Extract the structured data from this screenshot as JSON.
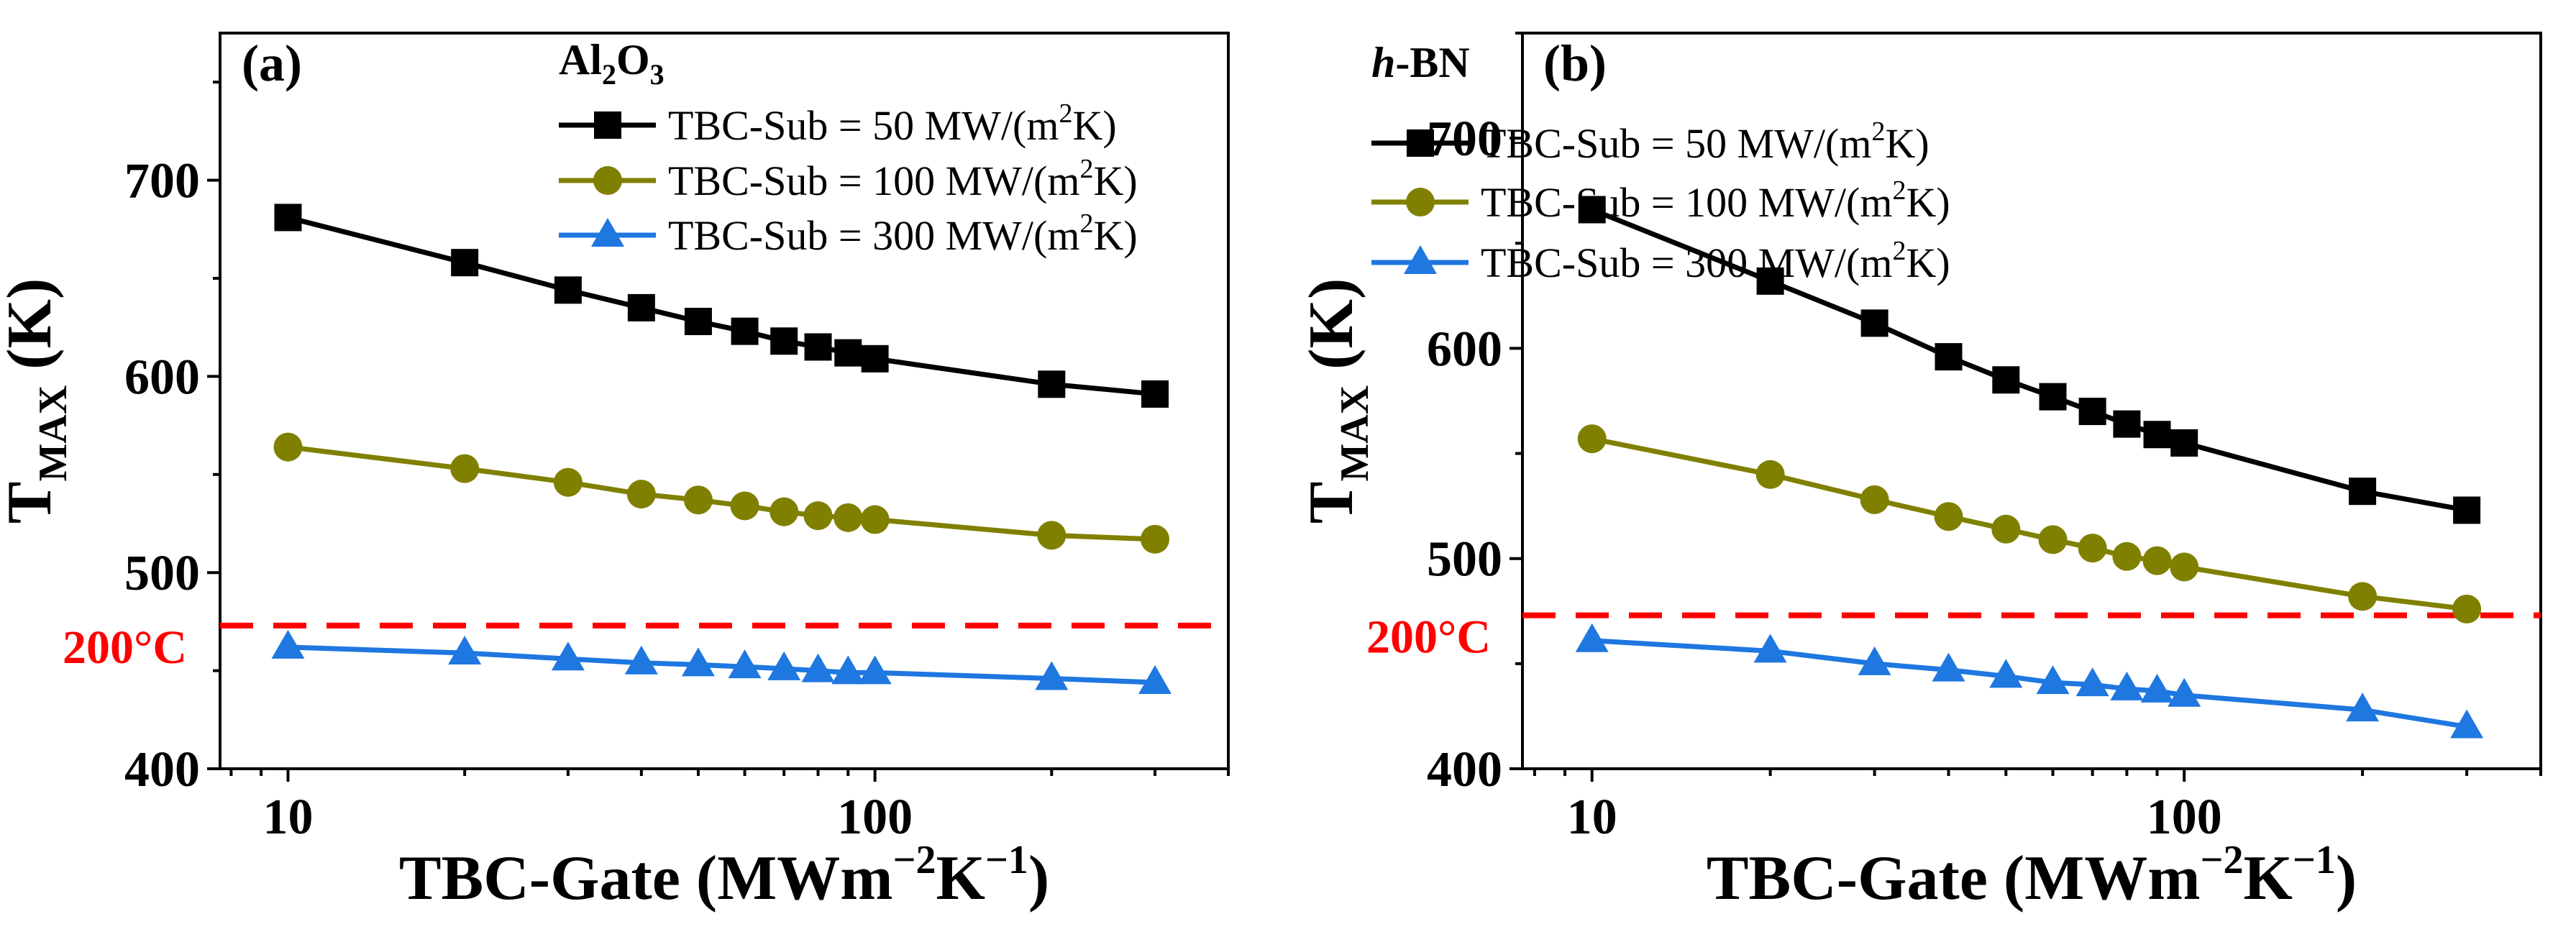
{
  "chart_data": [
    {
      "type": "line",
      "panel_label": "(a)",
      "material": {
        "main": "Al",
        "sub1": "2",
        "mid": "O",
        "sub2": "3"
      },
      "xscale": "log",
      "xlim": [
        7.66,
        400
      ],
      "ylim": [
        400,
        775
      ],
      "xticks": [
        10,
        100
      ],
      "xtick_labels": [
        "10",
        "100"
      ],
      "yticks": [
        400,
        500,
        600,
        700
      ],
      "ytick_labels": [
        "400",
        "500",
        "600",
        "700"
      ],
      "xlabel": {
        "text": "TBC-Gate (MWm",
        "sup1": "−2",
        "mid": "K",
        "sup2": "−1",
        "end": ")"
      },
      "ylabel": {
        "main": "T",
        "sub": "MAX",
        "end": " (K)"
      },
      "reference_line": {
        "value": 473,
        "label": "200°C",
        "color": "#ff0000",
        "style": "dashed"
      },
      "legend_position": "top-right",
      "x": [
        10,
        20,
        30,
        40,
        50,
        60,
        70,
        80,
        90,
        100,
        200,
        300
      ],
      "series": [
        {
          "name": {
            "pre": "TBC-Sub = 50 MW/(m",
            "sup": "2",
            "post": "K)"
          },
          "marker": "square",
          "color": "#000000",
          "values": [
            681,
            658,
            644,
            635,
            628,
            623,
            618,
            615,
            612,
            609,
            596,
            591
          ]
        },
        {
          "name": {
            "pre": "TBC-Sub = 100 MW/(m",
            "sup": "2",
            "post": "K)"
          },
          "marker": "circle",
          "color": "#808000",
          "values": [
            564,
            553,
            546,
            540,
            537,
            534,
            531,
            529,
            528,
            527,
            519,
            517
          ]
        },
        {
          "name": {
            "pre": "TBC-Sub = 300 MW/(m",
            "sup": "2",
            "post": "K)"
          },
          "marker": "triangle",
          "color": "#1f77e0",
          "values": [
            462,
            459,
            456,
            454,
            453,
            452,
            451,
            450,
            449,
            449,
            446,
            444
          ]
        }
      ]
    },
    {
      "type": "line",
      "panel_label": "(b)",
      "material": {
        "italic": "h",
        "rest": "-BN"
      },
      "xscale": "log",
      "xlim": [
        7.63,
        400
      ],
      "ylim": [
        400,
        750
      ],
      "xticks": [
        10,
        100
      ],
      "xtick_labels": [
        "10",
        "100"
      ],
      "yticks": [
        400,
        500,
        600,
        700
      ],
      "ytick_labels": [
        "400",
        "500",
        "600",
        "700"
      ],
      "xlabel": {
        "text": "TBC-Gate (MWm",
        "sup1": "−2",
        "mid": "K",
        "sup2": "−1",
        "end": ")"
      },
      "ylabel": {
        "main": "T",
        "sub": "MAX",
        "end": " (K)"
      },
      "reference_line": {
        "value": 473,
        "label": "200°C",
        "color": "#ff0000",
        "style": "dashed"
      },
      "legend_position": "top-right",
      "x": [
        10,
        20,
        30,
        40,
        50,
        60,
        70,
        80,
        90,
        100,
        200,
        300
      ],
      "series": [
        {
          "name": {
            "pre": "TBC-Sub = 50 MW/(m",
            "sup": "2",
            "post": "K)"
          },
          "marker": "square",
          "color": "#000000",
          "values": [
            666,
            632,
            612,
            596,
            585,
            577,
            570,
            564,
            559,
            555,
            532,
            523
          ]
        },
        {
          "name": {
            "pre": "TBC-Sub = 100 MW/(m",
            "sup": "2",
            "post": "K)"
          },
          "marker": "circle",
          "color": "#808000",
          "values": [
            557,
            540,
            528,
            520,
            514,
            509,
            505,
            501,
            499,
            496,
            482,
            476
          ]
        },
        {
          "name": {
            "pre": "TBC-Sub = 300 MW/(m",
            "sup": "2",
            "post": "K)"
          },
          "marker": "triangle",
          "color": "#1f77e0",
          "values": [
            461,
            456,
            450,
            447,
            444,
            441,
            440,
            438,
            437,
            435,
            428,
            420
          ]
        }
      ]
    }
  ]
}
